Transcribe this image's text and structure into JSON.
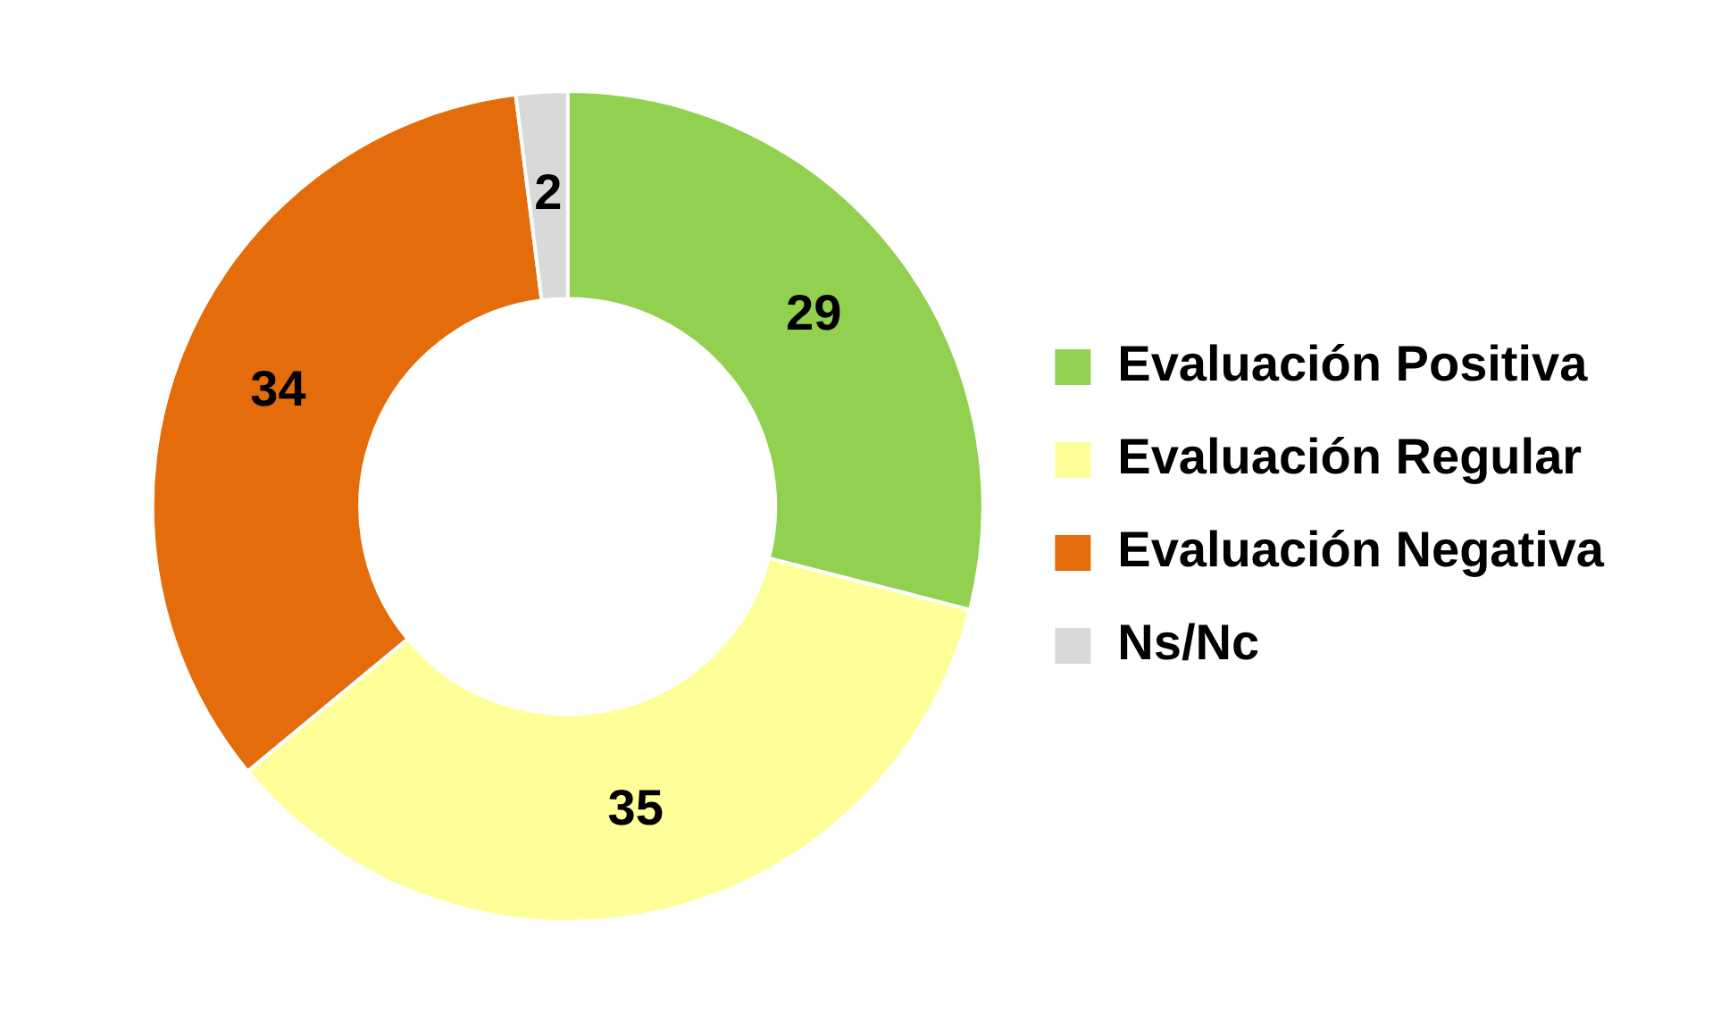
{
  "chart_data": {
    "type": "donut",
    "categories": [
      "Evaluación Positiva",
      "Evaluación Regular",
      "Evaluación Negativa",
      "Ns/Nc"
    ],
    "values": [
      29,
      35,
      34,
      2
    ],
    "colors": [
      "#92d050",
      "#ffff99",
      "#e46c0a",
      "#d9d9d9"
    ],
    "data_labels": true,
    "legend": "right"
  }
}
